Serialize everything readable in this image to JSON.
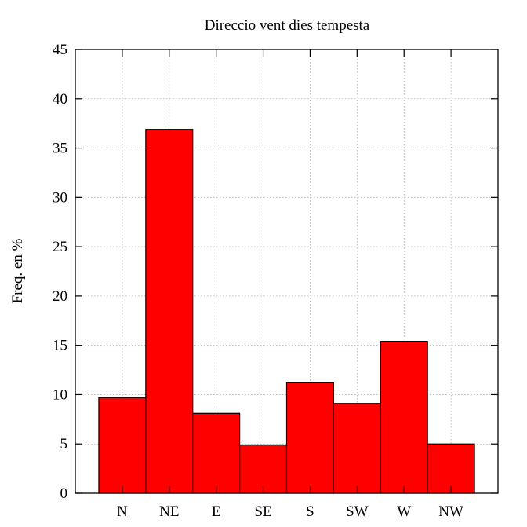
{
  "chart_data": {
    "type": "bar",
    "title": "Direccio vent dies tempesta",
    "xlabel": "",
    "ylabel": "Freq. en %",
    "categories": [
      "N",
      "NE",
      "E",
      "SE",
      "S",
      "SW",
      "W",
      "NW"
    ],
    "values": [
      9.7,
      36.9,
      8.1,
      4.9,
      11.2,
      9.1,
      15.4,
      5.0
    ],
    "ylim": [
      0,
      45
    ],
    "yticks": [
      0,
      5,
      10,
      15,
      20,
      25,
      30,
      35,
      40,
      45
    ],
    "xlim": [
      -0.5,
      8.5
    ],
    "bar_color": "#ff0000",
    "grid": true,
    "legend": "none"
  }
}
